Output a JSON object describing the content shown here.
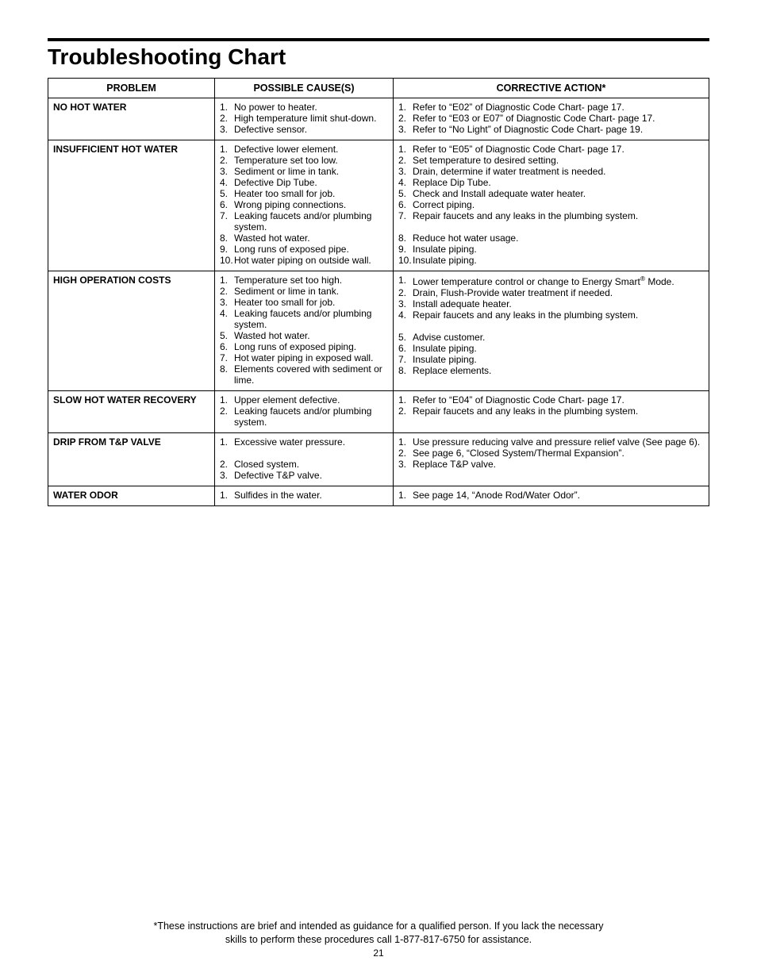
{
  "page_title": "Troubleshooting Chart",
  "columns": {
    "problem": "PROBLEM",
    "cause": "POSSIBLE CAUSE(S)",
    "action": "CORRECTIVE ACTION*"
  },
  "rows": [
    {
      "problem": "NO HOT WATER",
      "causes": [
        {
          "n": "1.",
          "t": "No power to heater."
        },
        {
          "n": "2.",
          "t": "High temperature limit shut-down."
        },
        {
          "n": "3.",
          "t": "Defective sensor."
        }
      ],
      "actions": [
        {
          "n": "1.",
          "t": "Refer to “E02” of Diagnostic Code Chart- page 17."
        },
        {
          "n": "2.",
          "t": "Refer to “E03 or E07” of Diagnostic Code Chart- page 17."
        },
        {
          "n": "3.",
          "t": "Refer to “No Light” of Diagnostic Code Chart- page 19."
        }
      ]
    },
    {
      "problem": "INSUFFICIENT HOT WATER",
      "causes": [
        {
          "n": "1.",
          "t": "Defective lower element."
        },
        {
          "n": "2.",
          "t": "Temperature set too low."
        },
        {
          "n": "3.",
          "t": "Sediment or lime in tank."
        },
        {
          "n": "4.",
          "t": "Defective Dip Tube."
        },
        {
          "n": "5.",
          "t": "Heater too small for job."
        },
        {
          "n": "6.",
          "t": "Wrong piping connections."
        },
        {
          "n": "7.",
          "t": "Leaking faucets and/or plumbing system."
        },
        {
          "n": "8.",
          "t": "Wasted hot water."
        },
        {
          "n": "9.",
          "t": "Long runs of exposed pipe."
        },
        {
          "n": "10.",
          "t": "Hot water piping on outside wall."
        }
      ],
      "actions": [
        {
          "n": "1.",
          "t": "Refer to “E05” of Diagnostic Code Chart- page 17."
        },
        {
          "n": "2.",
          "t": "Set temperature to desired setting."
        },
        {
          "n": "3.",
          "t": "Drain, determine if water treatment is needed."
        },
        {
          "n": "4.",
          "t": "Replace Dip Tube."
        },
        {
          "n": "5.",
          "t": "Check and Install adequate water heater."
        },
        {
          "n": "6.",
          "t": "Correct piping."
        },
        {
          "n": "7.",
          "t": "Repair faucets and any leaks in the plumbing system."
        },
        {
          "n": "",
          "t": ""
        },
        {
          "n": "8.",
          "t": "Reduce hot water usage."
        },
        {
          "n": "9.",
          "t": "Insulate piping."
        },
        {
          "n": "10.",
          "t": "Insulate piping."
        }
      ]
    },
    {
      "problem": "HIGH OPERATION COSTS",
      "causes": [
        {
          "n": "1.",
          "t": "Temperature set too high."
        },
        {
          "n": "2.",
          "t": "Sediment or lime in tank."
        },
        {
          "n": "3.",
          "t": "Heater too small for job."
        },
        {
          "n": "4.",
          "t": "Leaking faucets and/or plumbing system."
        },
        {
          "n": "5.",
          "t": "Wasted hot water."
        },
        {
          "n": "6.",
          "t": "Long runs of exposed piping."
        },
        {
          "n": "7.",
          "t": "Hot water piping in exposed wall."
        },
        {
          "n": "8.",
          "t": "Elements covered with sediment or lime."
        }
      ],
      "actions": [
        {
          "n": "1.",
          "html": "Lower temperature control or change to Energy Smart<sup>&reg;</sup> Mode."
        },
        {
          "n": "2.",
          "t": "Drain, Flush-Provide water treatment if needed."
        },
        {
          "n": "3.",
          "t": "Install adequate heater."
        },
        {
          "n": "4.",
          "t": "Repair faucets and any leaks in the plumbing system."
        },
        {
          "n": "",
          "t": ""
        },
        {
          "n": "5.",
          "t": "Advise customer."
        },
        {
          "n": "6.",
          "t": "Insulate piping."
        },
        {
          "n": "7.",
          "t": "Insulate piping."
        },
        {
          "n": "8.",
          "t": "Replace elements."
        }
      ]
    },
    {
      "problem": "SLOW HOT WATER RECOVERY",
      "causes": [
        {
          "n": "1.",
          "t": "Upper element defective."
        },
        {
          "n": "2.",
          "t": "Leaking faucets and/or plumbing system."
        }
      ],
      "actions": [
        {
          "n": "1.",
          "t": "Refer to “E04” of Diagnostic Code Chart- page 17."
        },
        {
          "n": "2.",
          "t": "Repair faucets and any leaks in the plumbing system."
        }
      ]
    },
    {
      "problem": "DRIP FROM T&P VALVE",
      "causes": [
        {
          "n": "1.",
          "t": "Excessive water pressure."
        },
        {
          "n": "",
          "t": ""
        },
        {
          "n": "2.",
          "t": "Closed system."
        },
        {
          "n": "3.",
          "t": "Defective T&P valve."
        }
      ],
      "actions": [
        {
          "n": "1.",
          "t": "Use pressure reducing valve and pressure relief valve (See page 6)."
        },
        {
          "n": "2.",
          "t": "See page 6, “Closed System/Thermal Expansion”."
        },
        {
          "n": "3.",
          "t": "Replace T&P valve."
        }
      ]
    },
    {
      "problem": "WATER ODOR",
      "causes": [
        {
          "n": "1.",
          "t": "Sulfides in the water."
        }
      ],
      "actions": [
        {
          "n": "1.",
          "t": "See page 14, “Anode Rod/Water Odor”."
        }
      ]
    }
  ],
  "footnote_line1": "*These instructions are brief and intended as guidance for a qualified person. If you lack the necessary",
  "footnote_line2": "skills to perform these procedures call 1-877-817-6750 for assistance.",
  "page_number": "21"
}
